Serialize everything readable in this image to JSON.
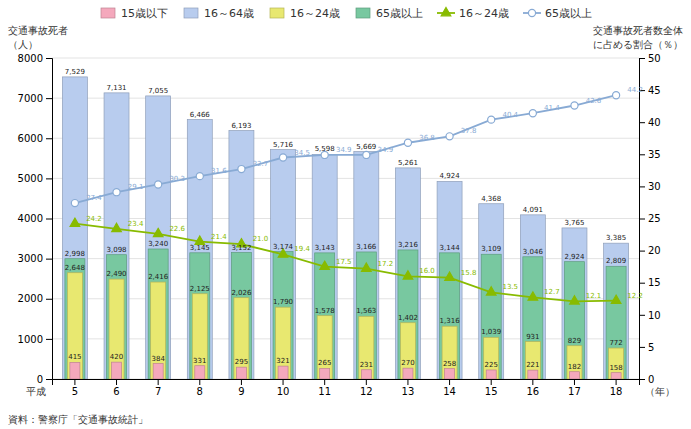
{
  "chart_data": {
    "type": "bar",
    "categories": [
      "5",
      "6",
      "7",
      "8",
      "9",
      "10",
      "11",
      "12",
      "13",
      "14",
      "15",
      "16",
      "17",
      "18"
    ],
    "series": [
      {
        "name": "15歳以下",
        "type": "bar",
        "color": "#f4a8bc",
        "values": [
          415,
          420,
          384,
          331,
          295,
          321,
          265,
          231,
          270,
          258,
          225,
          221,
          182,
          158
        ],
        "value_labels": [
          "415",
          "420",
          "384",
          "331",
          "295",
          "321",
          "265",
          "231",
          "270",
          "258",
          "225",
          "221",
          "182",
          "158"
        ]
      },
      {
        "name": "16～64歳",
        "type": "bar",
        "color": "#b8ccee",
        "values": [
          7529,
          7131,
          7055,
          6466,
          6193,
          5716,
          5598,
          5669,
          5261,
          4924,
          4368,
          4091,
          3765,
          3385
        ],
        "value_labels": [
          "7,529",
          "7,131",
          "7,055",
          "6,466",
          "6,193",
          "5,716",
          "5,598",
          "5,669",
          "5,261",
          "4,924",
          "4,368",
          "4,091",
          "3,765",
          "3,385"
        ]
      },
      {
        "name": "16～24歳",
        "type": "bar",
        "color": "#e8e870",
        "values": [
          2648,
          2490,
          2416,
          2125,
          2026,
          1790,
          1578,
          1563,
          1402,
          1316,
          1039,
          931,
          829,
          772
        ],
        "value_labels": [
          "2,648",
          "2,490",
          "2,416",
          "2,125",
          "2,026",
          "1,790",
          "1,578",
          "1,563",
          "1,402",
          "1,316",
          "1,039",
          "931",
          "829",
          "772"
        ]
      },
      {
        "name": "65歳以上",
        "type": "bar",
        "color": "#78c8a0",
        "values": [
          2998,
          3098,
          3240,
          3145,
          3152,
          3174,
          3143,
          3166,
          3216,
          3144,
          3109,
          3046,
          2924,
          2809
        ],
        "value_labels": [
          "2,998",
          "3,098",
          "3,240",
          "3,145",
          "3,152",
          "3,174",
          "3,143",
          "3,166",
          "3,216",
          "3,144",
          "3,109",
          "3,046",
          "2,924",
          "2,809"
        ]
      },
      {
        "name": "16～24歳",
        "type": "line",
        "axis": "y2",
        "color": "#88bb00",
        "marker": "triangle",
        "values": [
          24.2,
          23.4,
          22.6,
          21.4,
          21.0,
          19.4,
          17.5,
          17.2,
          16.0,
          15.8,
          13.5,
          12.7,
          12.1,
          12.2
        ],
        "value_labels": [
          "24.2",
          "23.4",
          "22.6",
          "21.4",
          "21.0",
          "19.4",
          "17.5",
          "17.2",
          "16.0",
          "15.8",
          "13.5",
          "12.7",
          "12.1",
          "12.2"
        ]
      },
      {
        "name": "65歳以上",
        "type": "line",
        "axis": "y2",
        "color": "#88aad4",
        "marker": "circle",
        "values": [
          27.4,
          29.1,
          30.3,
          31.6,
          32.7,
          34.5,
          34.9,
          34.9,
          36.8,
          37.8,
          40.4,
          41.4,
          42.6,
          44.2
        ],
        "value_labels": [
          "27.4",
          "29.1",
          "30.3",
          "31.6",
          "32.7",
          "34.5",
          "34.9",
          "34.9",
          "36.8",
          "37.8",
          "40.4",
          "41.4",
          "42.6",
          "44.2"
        ]
      }
    ],
    "ylim": [
      0,
      8000
    ],
    "yticks": [
      0,
      1000,
      2000,
      3000,
      4000,
      5000,
      6000,
      7000,
      8000
    ],
    "y2lim": [
      0,
      50
    ],
    "y2ticks": [
      0,
      5,
      10,
      15,
      20,
      25,
      30,
      35,
      40,
      45,
      50
    ],
    "ylabel": [
      "交通事故死者",
      "（人）"
    ],
    "y2label": [
      "交通事故死者数全体",
      "に占める割合（％）"
    ],
    "xlabel": [
      "平成",
      "（年）"
    ],
    "annotations": [
      "資料：警察庁「交通事故統計」"
    ],
    "grid": true,
    "legend": "top",
    "data_labels": true
  }
}
